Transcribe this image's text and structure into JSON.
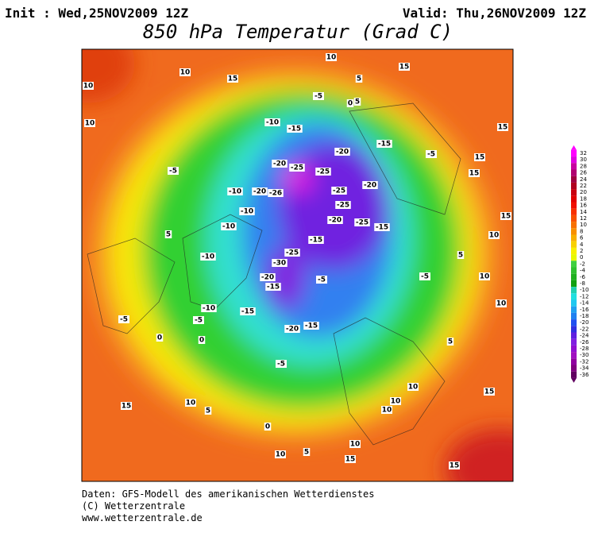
{
  "header": {
    "init": "Init : Wed,25NOV2009 12Z",
    "valid": "Valid: Thu,26NOV2009 12Z",
    "title": "850 hPa Temperatur (Grad C)"
  },
  "colorbar": {
    "ticks": [
      32,
      30,
      28,
      26,
      24,
      22,
      20,
      18,
      16,
      14,
      12,
      10,
      8,
      6,
      4,
      2,
      0,
      -2,
      -4,
      -6,
      -8,
      -10,
      -12,
      -14,
      -16,
      -18,
      -20,
      -22,
      -24,
      -26,
      -28,
      -30,
      -32,
      -34,
      -36
    ],
    "colors": [
      "#ff00ff",
      "#e000e0",
      "#c800a0",
      "#b00070",
      "#a00040",
      "#b00020",
      "#c80010",
      "#e00000",
      "#f01000",
      "#f83000",
      "#f85000",
      "#f87000",
      "#f89000",
      "#f8b000",
      "#f8d000",
      "#f8f000",
      "#e8f800",
      "#40d040",
      "#30c030",
      "#20b020",
      "#10a010",
      "#20d0b0",
      "#20e0e0",
      "#20c8f0",
      "#20a0f0",
      "#2080f0",
      "#2050f0",
      "#3030e0",
      "#6020e0",
      "#8020e0",
      "#9010d0",
      "#a010c0",
      "#9000a0",
      "#800080",
      "#600060"
    ]
  },
  "map": {
    "contour_labels": [
      10,
      15,
      10,
      15,
      10,
      5,
      -5,
      0,
      10,
      15,
      -10,
      -15,
      -20,
      -15,
      -5,
      15,
      -5,
      -20,
      -25,
      -25,
      -20,
      -25,
      -10,
      -20,
      -26,
      -10,
      -10,
      -25,
      -20,
      -15,
      -25,
      -15,
      -30,
      -25,
      -20,
      -15,
      -5,
      -10,
      -5,
      -10,
      -15,
      -20,
      -15,
      -5,
      5,
      5,
      0,
      10,
      -5,
      0,
      -5,
      0,
      10,
      15,
      10,
      15,
      5,
      5,
      10,
      15,
      15,
      10,
      15,
      5,
      10,
      15,
      10,
      5,
      10,
      10
    ]
  },
  "footer": {
    "line1": "Daten: GFS-Modell des amerikanischen Wetterdienstes",
    "line2": "(C) Wetterzentrale",
    "line3": "www.wetterzentrale.de"
  }
}
